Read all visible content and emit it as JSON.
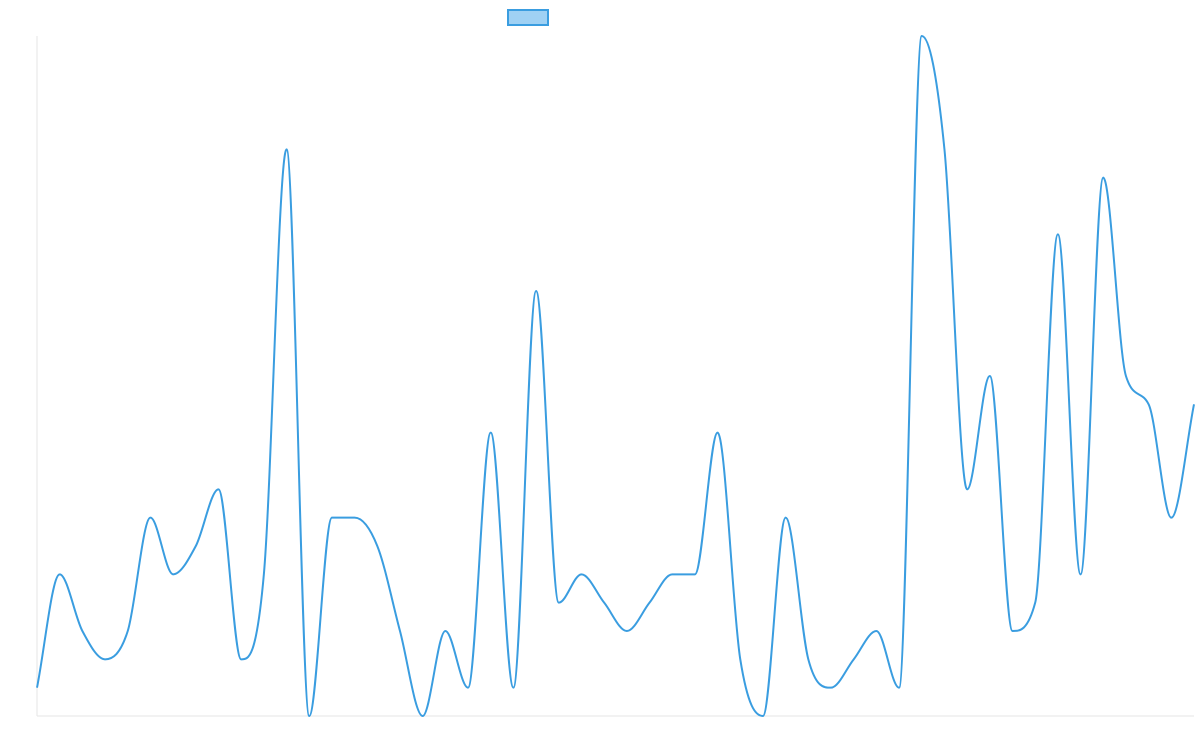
{
  "chart_data": {
    "type": "line",
    "title": "",
    "xlabel": "",
    "ylabel": "",
    "grid": false,
    "legend": {
      "position": "top-center",
      "entries": [
        {
          "label": "",
          "swatch_fill": "#9fd1f4",
          "swatch_stroke": "#3a9de0"
        }
      ]
    },
    "ylim": [
      0,
      24
    ],
    "series": [
      {
        "name": "",
        "color": "#3a9de0",
        "values": [
          1,
          5,
          3,
          2,
          3,
          7,
          5,
          6,
          8,
          2,
          5,
          20,
          0,
          7,
          7,
          6,
          3,
          0,
          3,
          1,
          10,
          1,
          15,
          4,
          5,
          4,
          3,
          4,
          5,
          5,
          10,
          2,
          0,
          7,
          2,
          1,
          2,
          3,
          1,
          24,
          20,
          8,
          12,
          3,
          4,
          17,
          5,
          19,
          12,
          11,
          7,
          11
        ]
      }
    ]
  }
}
